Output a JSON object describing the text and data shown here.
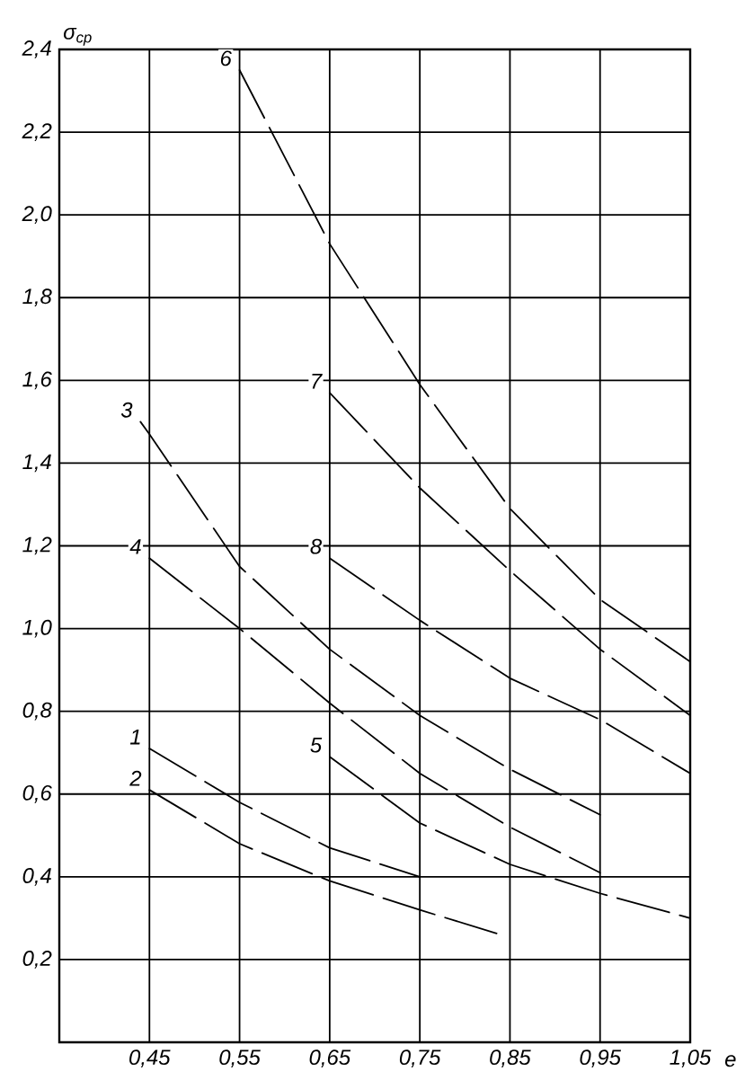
{
  "chart_data": {
    "type": "line",
    "xlabel": "e",
    "ylabel": "σ$_{ср}$",
    "xlim": [
      0.35,
      1.05
    ],
    "ylim": [
      0,
      2.4
    ],
    "xticks": [
      {
        "value": 0.45,
        "label": "0,45"
      },
      {
        "value": 0.55,
        "label": "0,55"
      },
      {
        "value": 0.65,
        "label": "0,65"
      },
      {
        "value": 0.75,
        "label": "0,75"
      },
      {
        "value": 0.85,
        "label": "0,85"
      },
      {
        "value": 0.95,
        "label": "0,95"
      },
      {
        "value": 1.05,
        "label": "1,05"
      }
    ],
    "yticks": [
      {
        "value": 0.2,
        "label": "0,2"
      },
      {
        "value": 0.4,
        "label": "0,4"
      },
      {
        "value": 0.6,
        "label": "0,6"
      },
      {
        "value": 0.8,
        "label": "0,8"
      },
      {
        "value": 1.0,
        "label": "1,0"
      },
      {
        "value": 1.2,
        "label": "1,2"
      },
      {
        "value": 1.4,
        "label": "1,4"
      },
      {
        "value": 1.6,
        "label": "1,6"
      },
      {
        "value": 1.8,
        "label": "1,8"
      },
      {
        "value": 2.0,
        "label": "2,0"
      },
      {
        "value": 2.2,
        "label": "2,2"
      },
      {
        "value": 2.4,
        "label": "2,4"
      }
    ],
    "grid": true,
    "legend": false,
    "marker": "none",
    "line_style": "dashed",
    "series": [
      {
        "name": "1",
        "color": "#000000",
        "x": [
          0.45,
          0.55,
          0.65,
          0.75
        ],
        "values": [
          0.71,
          0.58,
          0.47,
          0.4
        ]
      },
      {
        "name": "2",
        "color": "#000000",
        "x": [
          0.45,
          0.55,
          0.65,
          0.75,
          0.84
        ],
        "values": [
          0.61,
          0.48,
          0.39,
          0.32,
          0.26
        ]
      },
      {
        "name": "3",
        "color": "#000000",
        "x": [
          0.44,
          0.45,
          0.55,
          0.65,
          0.75,
          0.85,
          0.95
        ],
        "values": [
          1.5,
          1.47,
          1.15,
          0.95,
          0.79,
          0.66,
          0.55
        ]
      },
      {
        "name": "4",
        "color": "#000000",
        "x": [
          0.45,
          0.55,
          0.65,
          0.75,
          0.85,
          0.95
        ],
        "values": [
          1.17,
          1.0,
          0.82,
          0.65,
          0.52,
          0.41
        ]
      },
      {
        "name": "5",
        "color": "#000000",
        "x": [
          0.65,
          0.75,
          0.85,
          0.95,
          1.05
        ],
        "values": [
          0.69,
          0.53,
          0.43,
          0.36,
          0.3
        ]
      },
      {
        "name": "6",
        "color": "#000000",
        "x": [
          0.55,
          0.65,
          0.75,
          0.85,
          0.95,
          1.05
        ],
        "values": [
          2.35,
          1.93,
          1.59,
          1.29,
          1.07,
          0.92
        ]
      },
      {
        "name": "7",
        "color": "#000000",
        "x": [
          0.65,
          0.75,
          0.85,
          0.95,
          1.05
        ],
        "values": [
          1.57,
          1.34,
          1.14,
          0.95,
          0.79
        ]
      },
      {
        "name": "8",
        "color": "#000000",
        "x": [
          0.65,
          0.75,
          0.85,
          0.95,
          1.05
        ],
        "values": [
          1.17,
          1.02,
          0.88,
          0.78,
          0.65
        ]
      }
    ]
  }
}
